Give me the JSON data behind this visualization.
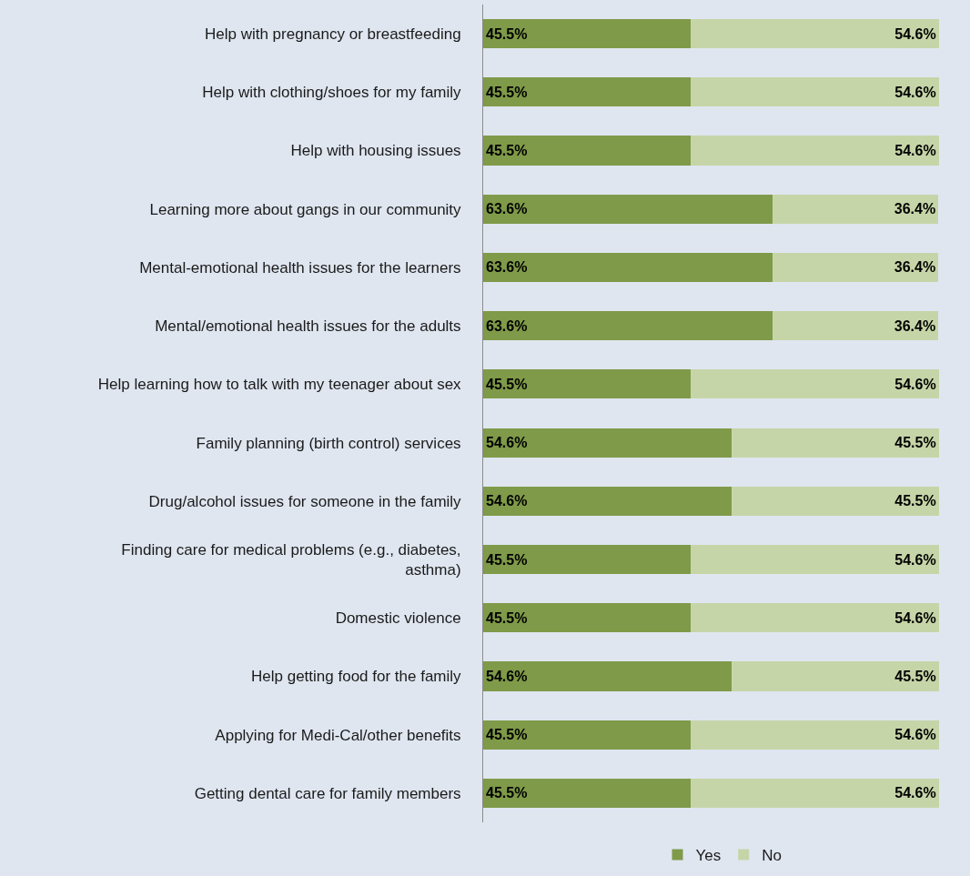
{
  "chart_data": {
    "type": "bar",
    "orientation": "horizontal",
    "stacked": true,
    "legend": "bottom",
    "grid": false,
    "tick_labels": "y",
    "categories": [
      "Help with pregnancy or breastfeeding",
      "Help with clothing/shoes for my family",
      "Help with housing issues",
      "Learning more about gangs in our community",
      "Mental-emotional health issues for the learners",
      "Mental/emotional health issues for the adults",
      "Help learning how to talk with my teenager about sex",
      "Family planning (birth control) services",
      "Drug/alcohol issues for someone in the family",
      "Finding care for medical problems (e.g., diabetes, asthma)",
      "Domestic violence",
      "Help getting food for the family",
      "Applying for Medi-Cal/other benefits",
      "Getting dental care for family members"
    ],
    "series": [
      {
        "name": "Yes",
        "color": "#7f9a48",
        "values": [
          45.5,
          45.5,
          45.5,
          63.6,
          63.6,
          63.6,
          45.5,
          54.6,
          54.6,
          45.5,
          45.5,
          54.6,
          45.5,
          45.5
        ],
        "value_labels": [
          "45.5%",
          "45.5%",
          "45.5%",
          "63.6%",
          "63.6%",
          "63.6%",
          "45.5%",
          "54.6%",
          "54.6%",
          "45.5%",
          "45.5%",
          "54.6%",
          "45.5%",
          "45.5%"
        ]
      },
      {
        "name": "No",
        "color": "#c6d5a8",
        "values": [
          54.6,
          54.6,
          54.6,
          36.4,
          36.4,
          36.4,
          54.6,
          45.5,
          45.5,
          54.6,
          54.6,
          45.5,
          54.6,
          54.6
        ],
        "value_labels": [
          "54.6%",
          "54.6%",
          "54.6%",
          "36.4%",
          "36.4%",
          "36.4%",
          "54.6%",
          "45.5%",
          "45.5%",
          "54.6%",
          "54.6%",
          "45.5%",
          "54.6%",
          "54.6%"
        ]
      }
    ]
  }
}
